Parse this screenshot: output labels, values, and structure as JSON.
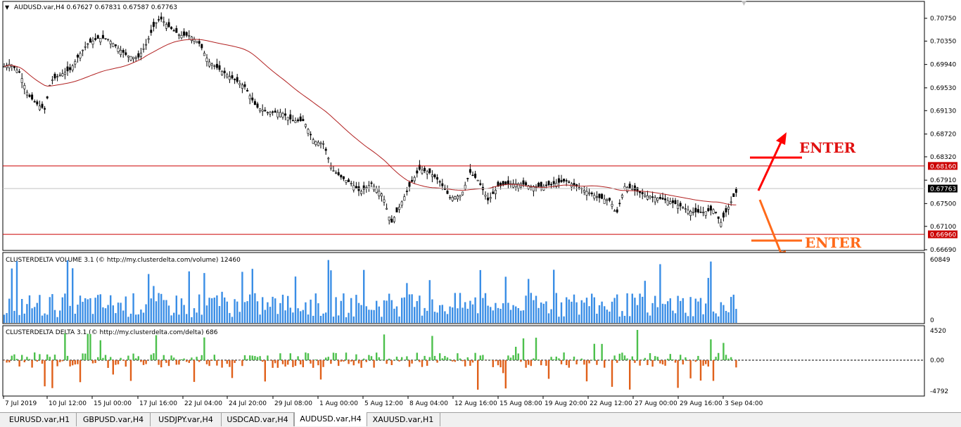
{
  "main_chart": {
    "title": "AUDUSD.var,H4  0.67627 0.67831 0.67587 0.67763",
    "price_levels": [
      "0.70750",
      "0.70350",
      "0.69940",
      "0.69530",
      "0.69130",
      "0.68720",
      "0.68320",
      "0.67910",
      "0.67500",
      "0.67100",
      "0.66690"
    ],
    "y_range": [
      0.6669,
      0.7075
    ],
    "resistance_price": "0.68160",
    "current_price": "0.67763",
    "support_price": "0.66960",
    "annotations": {
      "up_label": "ENTER",
      "down_label": "ENTER"
    },
    "colors": {
      "candles": "#000000",
      "ma": "#b22222",
      "levels": "#cc0000",
      "up_arrow": "#ff0000",
      "down_arrow": "#ff6a1a"
    }
  },
  "volume_panel": {
    "title": "CLUSTERDELTA VOLUME 3.1 (© http://my.clusterdelta.com/volume) 12460",
    "max_label": "60849",
    "min_label": "0",
    "color": "#3a8ee6"
  },
  "delta_panel": {
    "title": "CLUSTERDELTA DELTA 3.1 (© http://my.clusterdelta.com/delta) 686",
    "top_label": "4520",
    "zero_label": "0.00",
    "bottom_label": "-4792",
    "colors": {
      "positive": "#4cc04c",
      "negative": "#e0601a"
    }
  },
  "time_axis": [
    "7 Jul 2019",
    "10 Jul 12:00",
    "15 Jul 00:00",
    "17 Jul 16:00",
    "22 Jul 04:00",
    "24 Jul 20:00",
    "29 Jul 08:00",
    "1 Aug 00:00",
    "5 Aug 12:00",
    "8 Aug 04:00",
    "12 Aug 16:00",
    "15 Aug 08:00",
    "19 Aug 20:00",
    "22 Aug 12:00",
    "27 Aug 00:00",
    "29 Aug 16:00",
    "3 Sep 04:00"
  ],
  "tabs": [
    {
      "label": "EURUSD.var,H1",
      "active": false
    },
    {
      "label": "GBPUSD.var,H4",
      "active": false
    },
    {
      "label": "USDJPY.var,H4",
      "active": false
    },
    {
      "label": "USDCAD.var,H4",
      "active": false
    },
    {
      "label": "AUDUSD.var,H4",
      "active": true
    },
    {
      "label": "XAUUSD.var,H1",
      "active": false
    }
  ]
}
